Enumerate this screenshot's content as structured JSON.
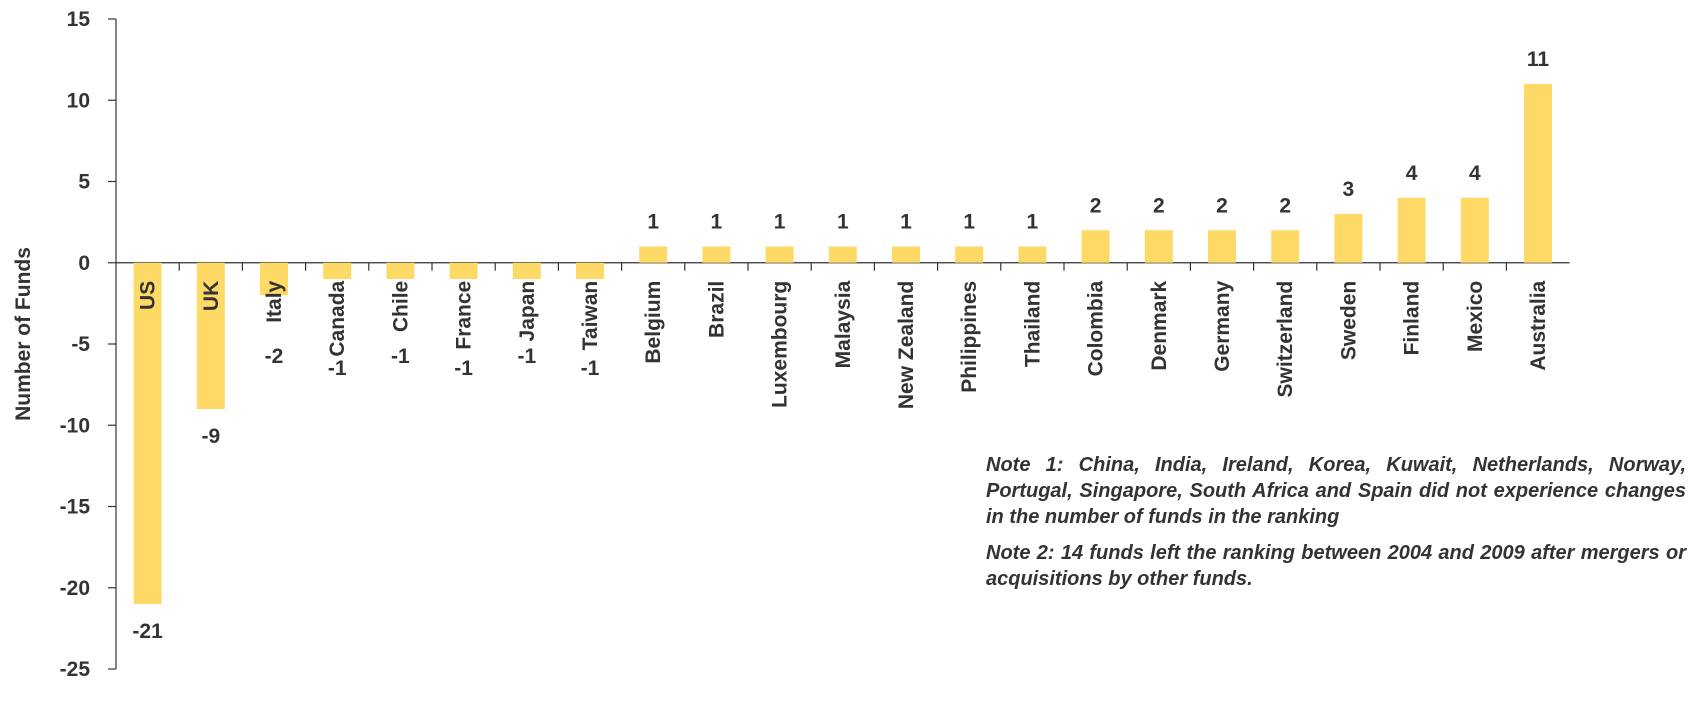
{
  "chart_data": {
    "type": "bar",
    "title": "",
    "xlabel": "",
    "ylabel": "Number of Funds",
    "ylim": [
      -25,
      15
    ],
    "yticks": [
      15,
      10,
      5,
      0,
      -5,
      -10,
      -15,
      -20,
      -25
    ],
    "categories": [
      "US",
      "UK",
      "Italy",
      "Canada",
      "Chile",
      "France",
      "Japan",
      "Taiwan",
      "Belgium",
      "Brazil",
      "Luxembourg",
      "Malaysia",
      "New Zealand",
      "Philippines",
      "Thailand",
      "Colombia",
      "Denmark",
      "Germany",
      "Switzerland",
      "Sweden",
      "Finland",
      "Mexico",
      "Australia"
    ],
    "values": [
      -21,
      -9,
      -2,
      -1,
      -1,
      -1,
      -1,
      -1,
      1,
      1,
      1,
      1,
      1,
      1,
      1,
      2,
      2,
      2,
      2,
      3,
      4,
      4,
      11
    ],
    "bar_color": "#FFD966",
    "grid": false,
    "legend": "none"
  },
  "notes": {
    "note1": "Note 1: China, India, Ireland, Korea, Kuwait, Netherlands, Norway, Portugal, Singapore, South Africa and Spain did not experience changes in the number of funds in the ranking",
    "note2": "Note 2: 14 funds left the ranking between 2004 and 2009 after mergers or acquisitions by other funds."
  }
}
